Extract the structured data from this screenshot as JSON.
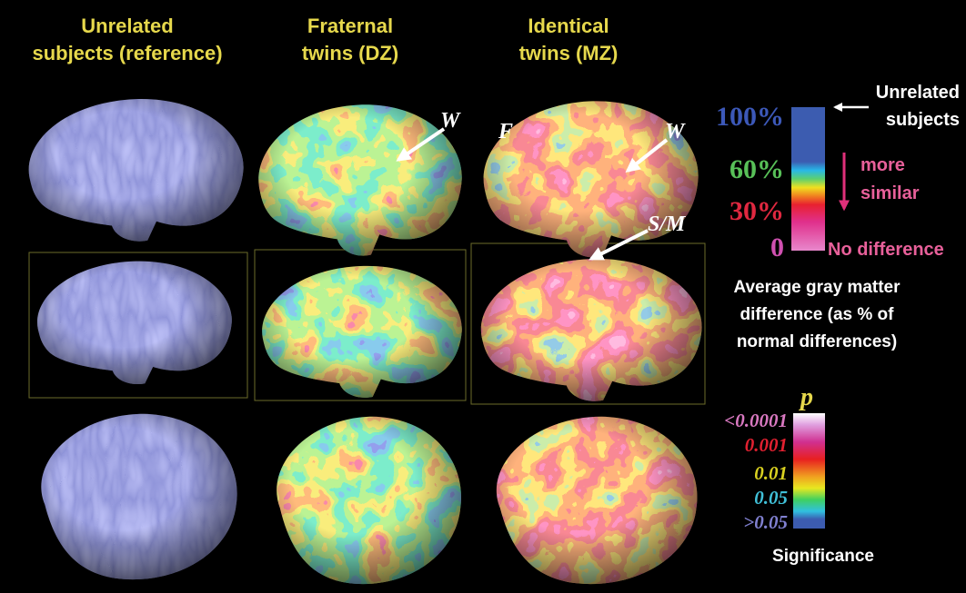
{
  "headers": [
    [
      "Unrelated",
      "subjects (reference)"
    ],
    [
      "Fraternal",
      "twins (DZ)"
    ],
    [
      "Identical",
      "twins (MZ)"
    ]
  ],
  "annotations": {
    "dz_w": "W",
    "mz_f": "F",
    "mz_w": "W",
    "mz_sm": "S/M"
  },
  "difference_scale": {
    "labels": [
      "100%",
      "60%",
      "30%",
      "0"
    ],
    "top_note": [
      "Unrelated",
      "subjects"
    ],
    "arrow_note": [
      "more",
      "similar"
    ],
    "bottom_note": "No difference",
    "caption": [
      "Average gray matter",
      "difference (as % of",
      "normal differences)"
    ]
  },
  "significance_scale": {
    "title": "p",
    "labels": [
      "<0.0001",
      "0.001",
      "0.01",
      "0.05",
      ">0.05"
    ],
    "caption": "Significance"
  }
}
